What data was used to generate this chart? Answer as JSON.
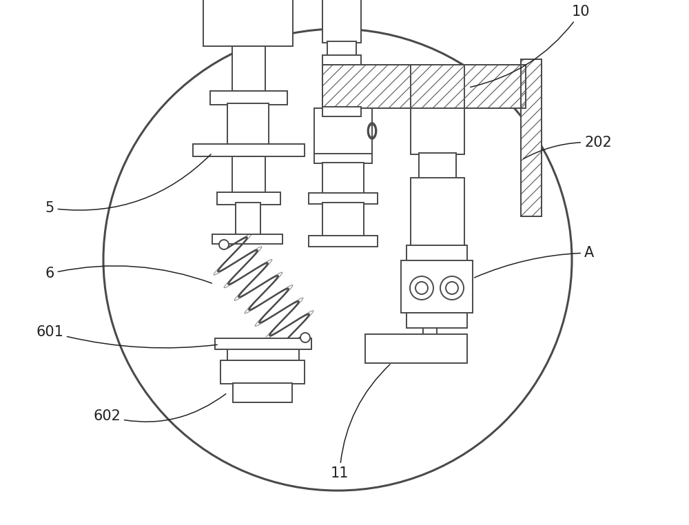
{
  "bg_color": "#ffffff",
  "line_color": "#4a4a4a",
  "fig_width": 10.0,
  "fig_height": 7.62,
  "dpi": 100
}
